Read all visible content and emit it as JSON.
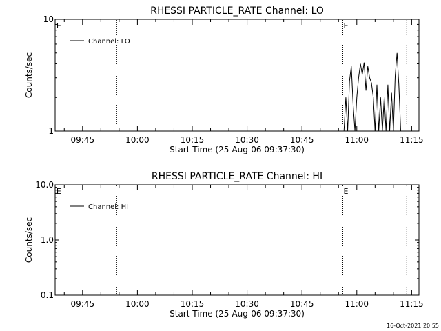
{
  "chart_data": [
    {
      "type": "line",
      "title": "RHESSI PARTICLE_RATE Channel: LO",
      "xlabel": "Start Time (25-Aug-06 09:37:30)",
      "ylabel": "Counts/sec",
      "yscale": "log",
      "ylim": [
        1,
        10
      ],
      "y_ticks": [
        "1",
        "10"
      ],
      "xlim": [
        "09:37:30",
        "11:17:00"
      ],
      "x_ticks": [
        "09:45",
        "10:00",
        "10:15",
        "10:30",
        "10:45",
        "11:00",
        "11:15"
      ],
      "vertical_lines": [
        "09:54:20",
        "10:56:10",
        "11:13:40"
      ],
      "markers": [
        {
          "label": "E",
          "at": "09:37:40"
        },
        {
          "label": "E",
          "at": "10:56:10"
        }
      ],
      "legend": {
        "position": "top-left",
        "entries": [
          "Channel: LO"
        ]
      },
      "grid": false,
      "series": [
        {
          "name": "Channel: LO",
          "x": [
            "10:55:00",
            "10:56:30",
            "10:57:00",
            "10:57:30",
            "10:58:00",
            "10:58:30",
            "10:59:00",
            "10:59:30",
            "11:00:00",
            "11:00:30",
            "11:01:00",
            "11:01:30",
            "11:02:00",
            "11:02:30",
            "11:03:00",
            "11:03:30",
            "11:04:00",
            "11:04:30",
            "11:05:00",
            "11:05:30",
            "11:06:00",
            "11:06:30",
            "11:07:00",
            "11:07:30",
            "11:08:00",
            "11:08:30",
            "11:09:00",
            "11:09:30",
            "11:10:00",
            "11:10:30",
            "11:11:00",
            "11:11:30",
            "11:12:00"
          ],
          "values": [
            1.0,
            1.0,
            2.0,
            1.0,
            2.8,
            3.8,
            1.7,
            1.0,
            2.0,
            3.0,
            4.0,
            3.2,
            4.1,
            2.3,
            3.8,
            3.0,
            2.7,
            2.0,
            1.0,
            2.6,
            1.0,
            2.0,
            1.0,
            2.0,
            1.0,
            2.6,
            1.0,
            2.2,
            1.0,
            3.1,
            5.0,
            2.6,
            1.0
          ]
        }
      ]
    },
    {
      "type": "line",
      "title": "RHESSI PARTICLE_RATE Channel: HI",
      "xlabel": "Start Time (25-Aug-06 09:37:30)",
      "ylabel": "Counts/sec",
      "yscale": "log",
      "ylim": [
        0.1,
        10
      ],
      "y_ticks": [
        "0.1",
        "1.0",
        "10.0"
      ],
      "xlim": [
        "09:37:30",
        "11:17:00"
      ],
      "x_ticks": [
        "09:45",
        "10:00",
        "10:15",
        "10:30",
        "10:45",
        "11:00",
        "11:15"
      ],
      "vertical_lines": [
        "09:54:20",
        "10:56:10",
        "11:13:40"
      ],
      "markers": [
        {
          "label": "E",
          "at": "09:37:40"
        },
        {
          "label": "E",
          "at": "10:56:10"
        }
      ],
      "legend": {
        "position": "top-left",
        "entries": [
          "Channel: HI"
        ]
      },
      "grid": false,
      "series": [
        {
          "name": "Channel: HI",
          "x": [],
          "values": []
        }
      ]
    }
  ],
  "footer": {
    "timestamp": "16-Oct-2021 20:55"
  }
}
